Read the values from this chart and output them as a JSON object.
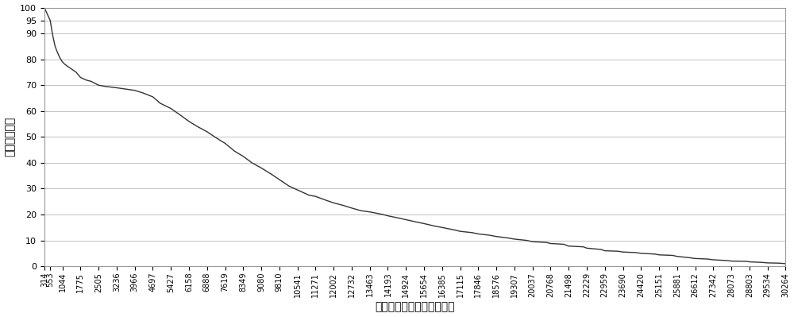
{
  "x_ticks": [
    314,
    553,
    1044,
    1775,
    2505,
    3236,
    3966,
    4697,
    5427,
    6158,
    6888,
    7619,
    8349,
    9080,
    9810,
    10541,
    11271,
    12002,
    12732,
    13463,
    14193,
    14924,
    15654,
    16385,
    17115,
    17846,
    18576,
    19307,
    20037,
    20768,
    21498,
    22229,
    22959,
    23690,
    24420,
    25151,
    25881,
    26612,
    27342,
    28073,
    28803,
    29534,
    30264
  ],
  "xlabel": "出行起评点停留时长（秒）",
  "ylabel": "累计概率分布",
  "ylim": [
    0,
    100
  ],
  "yticks": [
    0,
    10,
    20,
    30,
    40,
    50,
    60,
    70,
    80,
    90,
    95,
    100
  ],
  "line_color": "#333333",
  "bg_color": "#ffffff",
  "grid_color": "#aaaaaa",
  "curve_x": [
    314,
    553,
    620,
    680,
    750,
    830,
    920,
    1044,
    1150,
    1300,
    1450,
    1600,
    1775,
    2000,
    2200,
    2505,
    2800,
    3236,
    3600,
    3966,
    4300,
    4697,
    5000,
    5427,
    5800,
    6158,
    6500,
    6888,
    7200,
    7619,
    8000,
    8349,
    8700,
    9080,
    9500,
    9810,
    10200,
    10541,
    11000,
    11271,
    11700,
    12002,
    12400,
    12732,
    13100,
    13463,
    14000,
    14193,
    14700,
    14924,
    15400,
    15654,
    16100,
    16385,
    16900,
    17115,
    17600,
    17846,
    18300,
    18576,
    19000,
    19307,
    19800,
    20037,
    20600,
    20768,
    21300,
    21498,
    22100,
    22229,
    22800,
    22959,
    23500,
    23690,
    24200,
    24420,
    25000,
    25151,
    25700,
    25881,
    26300,
    26612,
    27100,
    27342,
    27900,
    28073,
    28700,
    28803,
    29300,
    29534,
    30000,
    30264
  ],
  "curve_y": [
    100,
    95,
    91,
    88,
    85,
    83,
    81,
    79,
    78,
    77,
    76,
    75,
    73,
    72,
    71.5,
    70,
    69.5,
    69,
    68.5,
    68,
    67,
    65.5,
    63,
    61,
    58.5,
    56,
    54,
    52,
    50,
    47.5,
    44.5,
    42.5,
    40,
    38,
    35.5,
    33.5,
    31,
    29.5,
    27.5,
    27,
    25.5,
    24.5,
    23.5,
    22.5,
    21.5,
    21,
    20,
    19.5,
    18.5,
    18,
    17,
    16.5,
    15.5,
    15,
    14,
    13.5,
    13,
    12.5,
    12,
    11.5,
    11,
    10.5,
    10,
    9.5,
    9.2,
    8.8,
    8.5,
    7.8,
    7.5,
    7,
    6.5,
    6,
    5.8,
    5.5,
    5.3,
    5,
    4.7,
    4.4,
    4.2,
    3.8,
    3.4,
    3.0,
    2.8,
    2.5,
    2.2,
    2.0,
    1.9,
    1.7,
    1.5,
    1.3,
    1.2,
    1.0
  ]
}
